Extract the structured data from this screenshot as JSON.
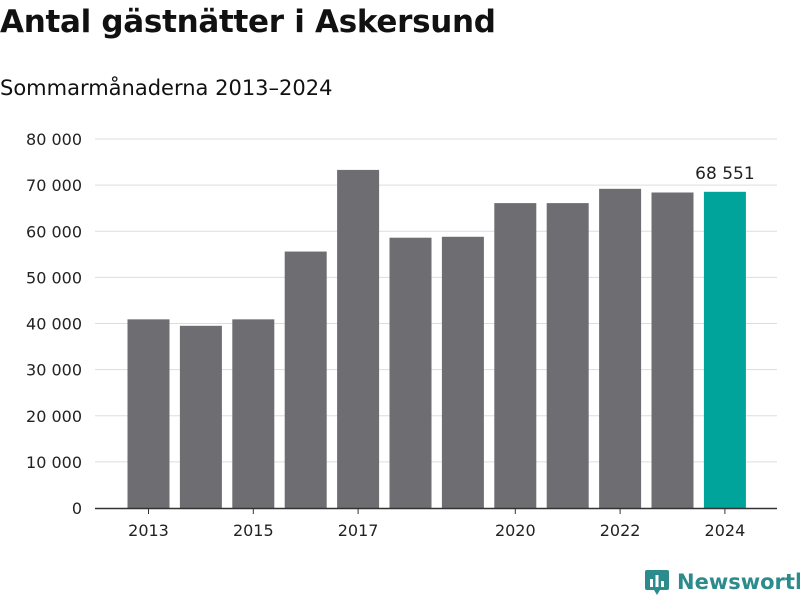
{
  "header": {
    "title": "Antal gästnätter i Askersund",
    "subtitle": "Sommarmånaderna 2013–2024"
  },
  "brand": {
    "name": "Newsworthy",
    "icon": "newsworthy-chart-icon",
    "color": "#2c8b8c"
  },
  "colors": {
    "bar": "#6e6d72",
    "highlight": "#00a49a",
    "grid": "#dddddd",
    "axis": "#333333",
    "text": "#222222"
  },
  "chart_data": {
    "type": "bar",
    "categories": [
      "2013",
      "2014",
      "2015",
      "2016",
      "2017",
      "2018",
      "2019",
      "2020",
      "2021",
      "2022",
      "2023",
      "2024"
    ],
    "x_tick_labels": [
      "2013",
      "",
      "2015",
      "",
      "2017",
      "",
      "",
      "2020",
      "",
      "2022",
      "",
      "2024"
    ],
    "values": [
      40900,
      39500,
      40900,
      55600,
      73300,
      58600,
      58800,
      66100,
      66100,
      69200,
      68400,
      68551
    ],
    "highlight_index": 11,
    "highlight_label": "68 551",
    "ylim": [
      0,
      80000
    ],
    "yticks": [
      0,
      10000,
      20000,
      30000,
      40000,
      50000,
      60000,
      70000,
      80000
    ],
    "ytick_labels": [
      "0",
      "10 000",
      "20 000",
      "30 000",
      "40 000",
      "50 000",
      "60 000",
      "70 000",
      "80 000"
    ],
    "grid": true,
    "legend": "none"
  }
}
